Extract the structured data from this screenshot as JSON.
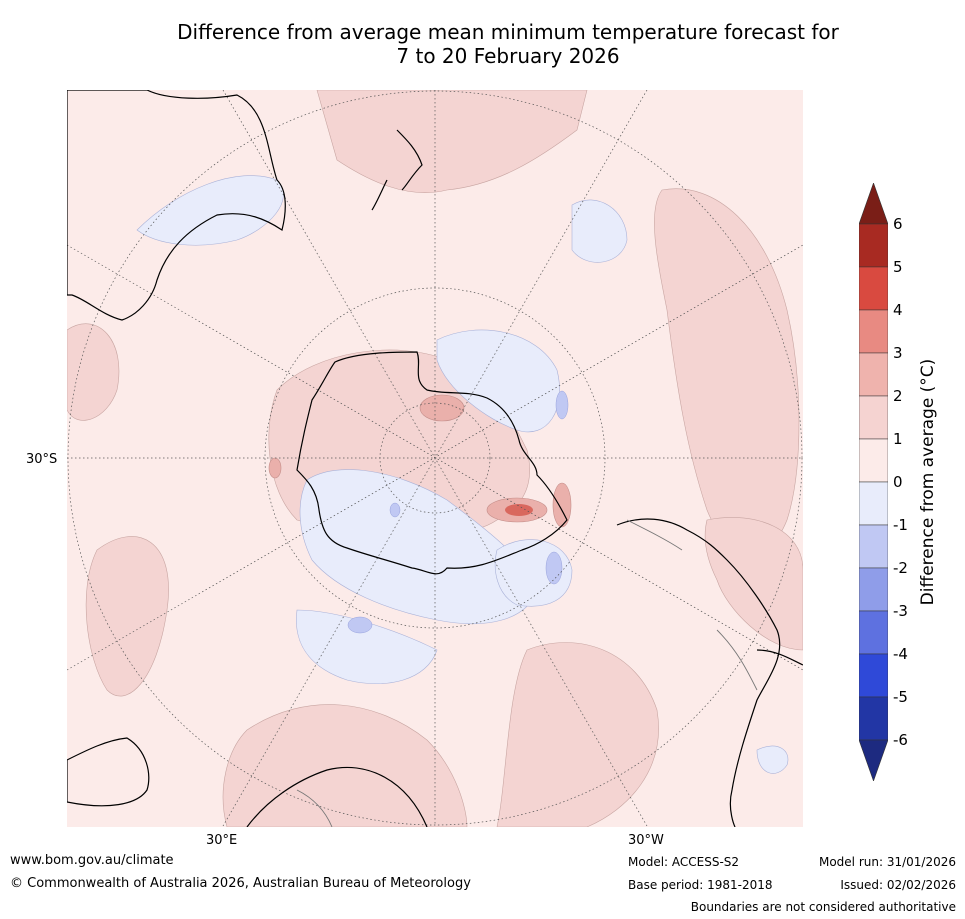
{
  "title": {
    "line1": "Difference from average mean minimum temperature forecast for",
    "line2": "7 to 20 February 2026"
  },
  "map": {
    "projection": "south-polar-stereographic",
    "lat_label": "30°S",
    "lon_labels": [
      "30°E",
      "30°W"
    ]
  },
  "colorbar": {
    "label": "Difference from average (°C)",
    "ticks": [
      "6",
      "5",
      "4",
      "3",
      "2",
      "1",
      "0",
      "-1",
      "-2",
      "-3",
      "-4",
      "-5",
      "-6"
    ],
    "colors_top_to_bottom": [
      "#7a1e17",
      "#a82a22",
      "#d94a40",
      "#e88a82",
      "#efb3ad",
      "#f5d3d1",
      "#fcebe9",
      "#e8ecfb",
      "#c0c8f3",
      "#8f9de9",
      "#5e71e0",
      "#2f49d8",
      "#2236a5",
      "#1d2a80"
    ]
  },
  "footer": {
    "url": "www.bom.gov.au/climate",
    "copyright": "© Commonwealth of Australia 2026, Australian Bureau of Meteorology",
    "model": "Model: ACCESS-S2",
    "base_period": "Base period: 1981-2018",
    "model_run": "Model run: 31/01/2026",
    "issued": "Issued: 02/02/2026",
    "boundaries": "Boundaries are not considered authoritative"
  }
}
